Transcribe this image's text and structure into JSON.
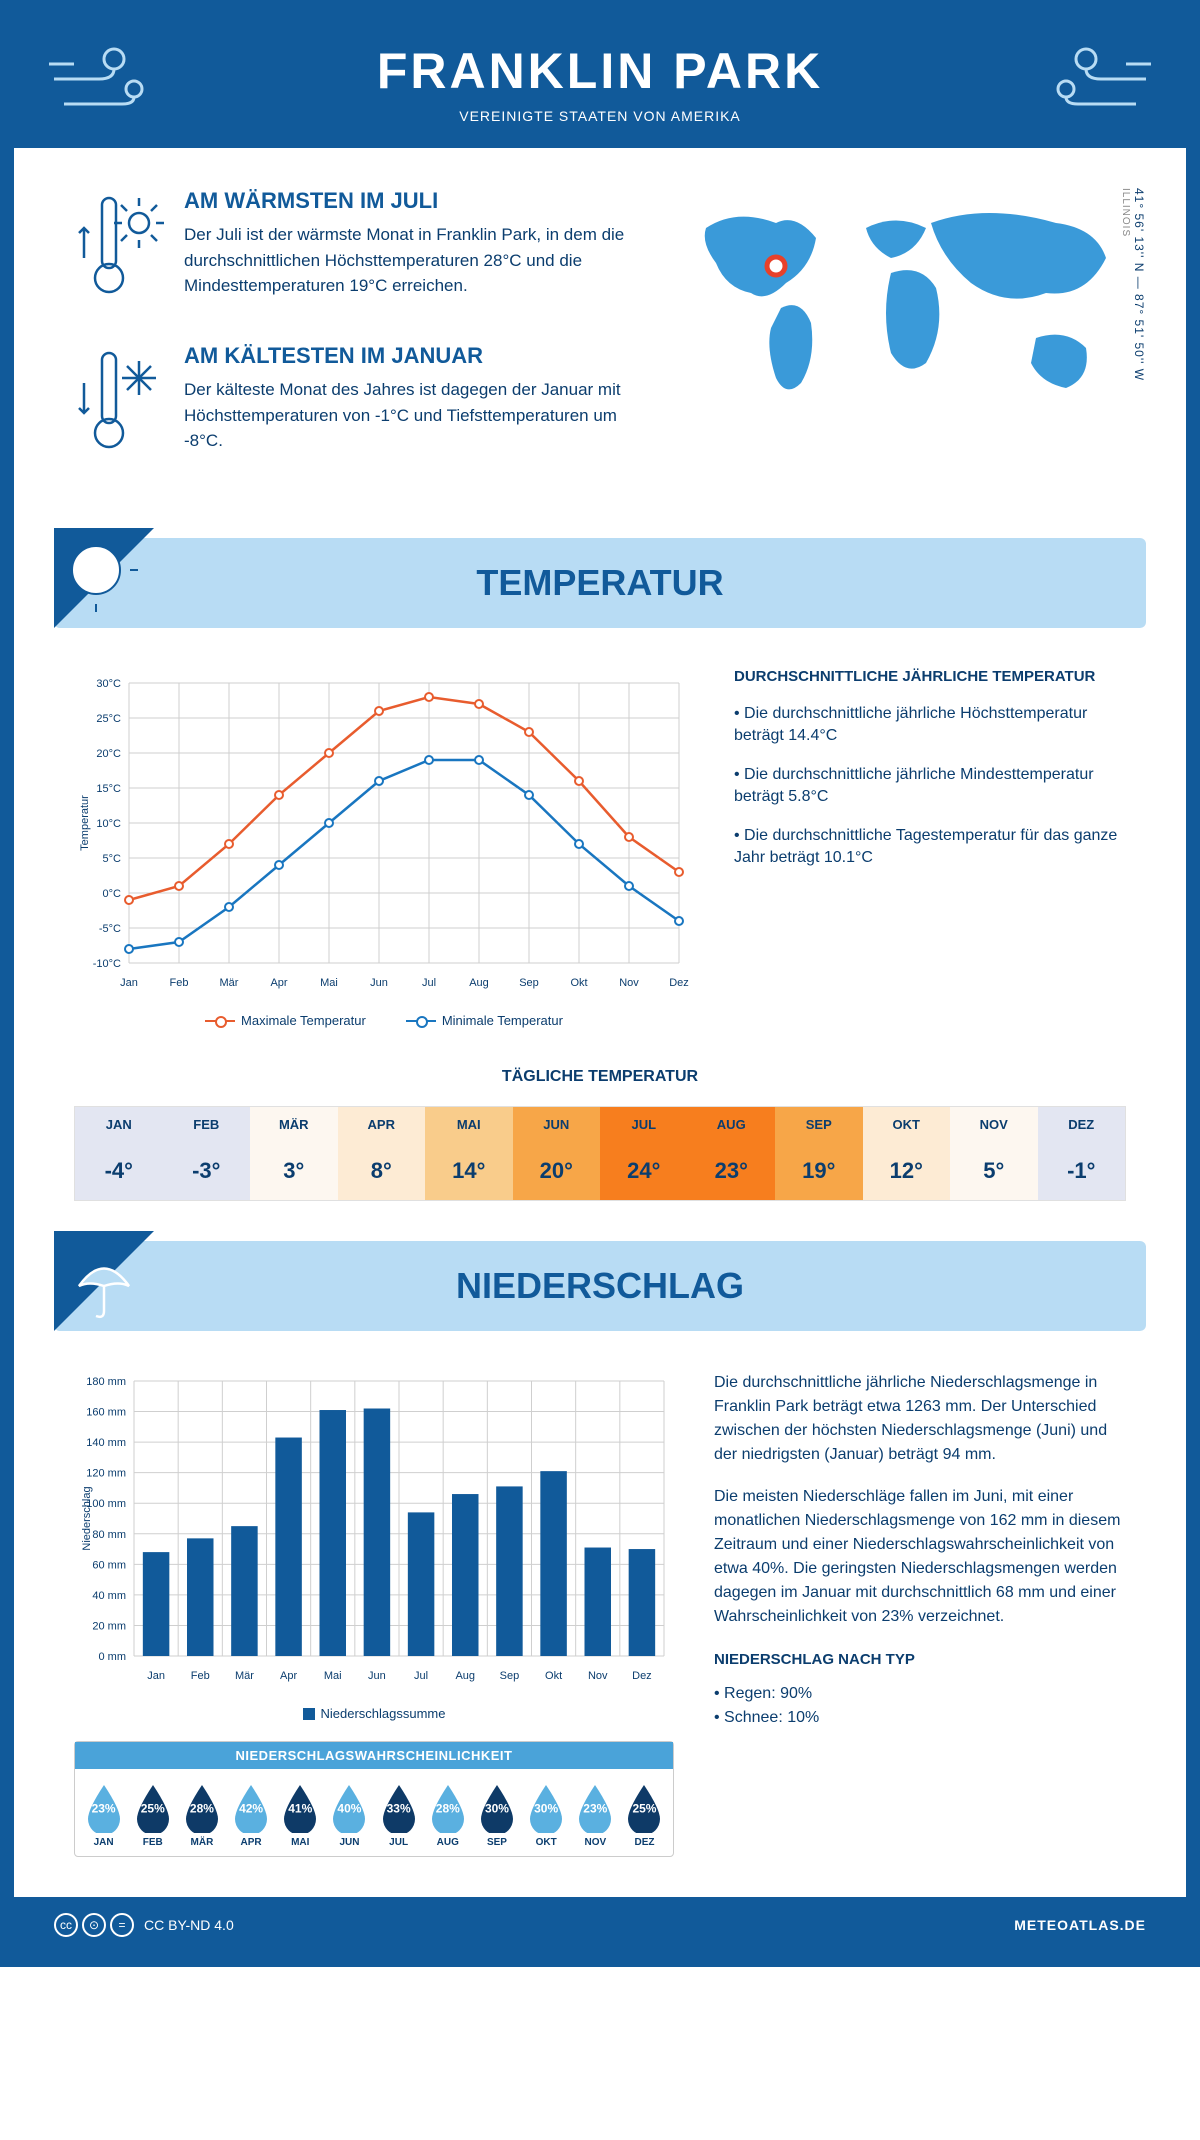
{
  "header": {
    "title": "FRANKLIN PARK",
    "subtitle": "VEREINIGTE STAATEN VON AMERIKA"
  },
  "intro": {
    "warm": {
      "title": "AM WÄRMSTEN IM JULI",
      "text": "Der Juli ist der wärmste Monat in Franklin Park, in dem die durchschnittlichen Höchsttemperaturen 28°C und die Mindesttemperaturen 19°C erreichen."
    },
    "cold": {
      "title": "AM KÄLTESTEN IM JANUAR",
      "text": "Der kälteste Monat des Jahres ist dagegen der Januar mit Höchsttemperaturen von -1°C und Tiefsttemperaturen um -8°C."
    },
    "coords": "41° 56' 13'' N — 87° 51' 50'' W",
    "region": "ILLINOIS"
  },
  "temp_section": {
    "title": "TEMPERATUR",
    "side_title": "DURCHSCHNITTLICHE JÄHRLICHE TEMPERATUR",
    "bullets": [
      "Die durchschnittliche jährliche Höchsttemperatur beträgt 14.4°C",
      "Die durchschnittliche jährliche Mindesttemperatur beträgt 5.8°C",
      "Die durchschnittliche Tagestemperatur für das ganze Jahr beträgt 10.1°C"
    ],
    "chart": {
      "months": [
        "Jan",
        "Feb",
        "Mär",
        "Apr",
        "Mai",
        "Jun",
        "Jul",
        "Aug",
        "Sep",
        "Okt",
        "Nov",
        "Dez"
      ],
      "max": [
        -1,
        1,
        7,
        14,
        20,
        26,
        28,
        27,
        23,
        16,
        8,
        3
      ],
      "min": [
        -8,
        -7,
        -2,
        4,
        10,
        16,
        19,
        19,
        14,
        7,
        1,
        -4
      ],
      "ylabel": "Temperatur",
      "ylim": [
        -10,
        30
      ],
      "ytick_step": 5,
      "max_color": "#e85c2e",
      "min_color": "#1976c0",
      "grid_color": "#cfcfcf",
      "legend_max": "Maximale Temperatur",
      "legend_min": "Minimale Temperatur"
    }
  },
  "daily": {
    "title": "TÄGLICHE TEMPERATUR",
    "months": [
      "JAN",
      "FEB",
      "MÄR",
      "APR",
      "MAI",
      "JUN",
      "JUL",
      "AUG",
      "SEP",
      "OKT",
      "NOV",
      "DEZ"
    ],
    "values": [
      "-4°",
      "-3°",
      "3°",
      "8°",
      "14°",
      "20°",
      "24°",
      "23°",
      "19°",
      "12°",
      "5°",
      "-1°"
    ],
    "colors": [
      "#e3e6f2",
      "#e3e6f2",
      "#fdf7f0",
      "#fdebd4",
      "#f9cc8b",
      "#f7a648",
      "#f77e1e",
      "#f77e1e",
      "#f7a648",
      "#fdebd4",
      "#fdf7f0",
      "#e3e6f2"
    ]
  },
  "precip_section": {
    "title": "NIEDERSCHLAG",
    "chart": {
      "months": [
        "Jan",
        "Feb",
        "Mär",
        "Apr",
        "Mai",
        "Jun",
        "Jul",
        "Aug",
        "Sep",
        "Okt",
        "Nov",
        "Dez"
      ],
      "values": [
        68,
        77,
        85,
        143,
        161,
        162,
        94,
        106,
        111,
        121,
        71,
        70
      ],
      "ylabel": "Niederschlag",
      "ylim": [
        0,
        180
      ],
      "ytick_step": 20,
      "bar_color": "#115a9a",
      "grid_color": "#cfcfcf",
      "legend": "Niederschlagssumme"
    },
    "text1": "Die durchschnittliche jährliche Niederschlagsmenge in Franklin Park beträgt etwa 1263 mm. Der Unterschied zwischen der höchsten Niederschlagsmenge (Juni) und der niedrigsten (Januar) beträgt 94 mm.",
    "text2": "Die meisten Niederschläge fallen im Juni, mit einer monatlichen Niederschlagsmenge von 162 mm in diesem Zeitraum und einer Niederschlagswahrscheinlichkeit von etwa 40%. Die geringsten Niederschlagsmengen werden dagegen im Januar mit durchschnittlich 68 mm und einer Wahrscheinlichkeit von 23% verzeichnet.",
    "by_type_title": "NIEDERSCHLAG NACH TYP",
    "by_type": [
      "Regen: 90%",
      "Schnee: 10%"
    ]
  },
  "probability": {
    "title": "NIEDERSCHLAGSWAHRSCHEINLICHKEIT",
    "months": [
      "JAN",
      "FEB",
      "MÄR",
      "APR",
      "MAI",
      "JUN",
      "JUL",
      "AUG",
      "SEP",
      "OKT",
      "NOV",
      "DEZ"
    ],
    "pcts": [
      "23%",
      "25%",
      "28%",
      "42%",
      "41%",
      "40%",
      "33%",
      "28%",
      "30%",
      "30%",
      "23%",
      "25%"
    ],
    "colors": [
      "#5ab0e0",
      "#0e3a67",
      "#0e3a67",
      "#5ab0e0",
      "#0e3a67",
      "#5ab0e0",
      "#0e3a67",
      "#5ab0e0",
      "#0e3a67",
      "#5ab0e0",
      "#5ab0e0",
      "#0e3a67"
    ]
  },
  "footer": {
    "license": "CC BY-ND 4.0",
    "site": "METEOATLAS.DE"
  }
}
